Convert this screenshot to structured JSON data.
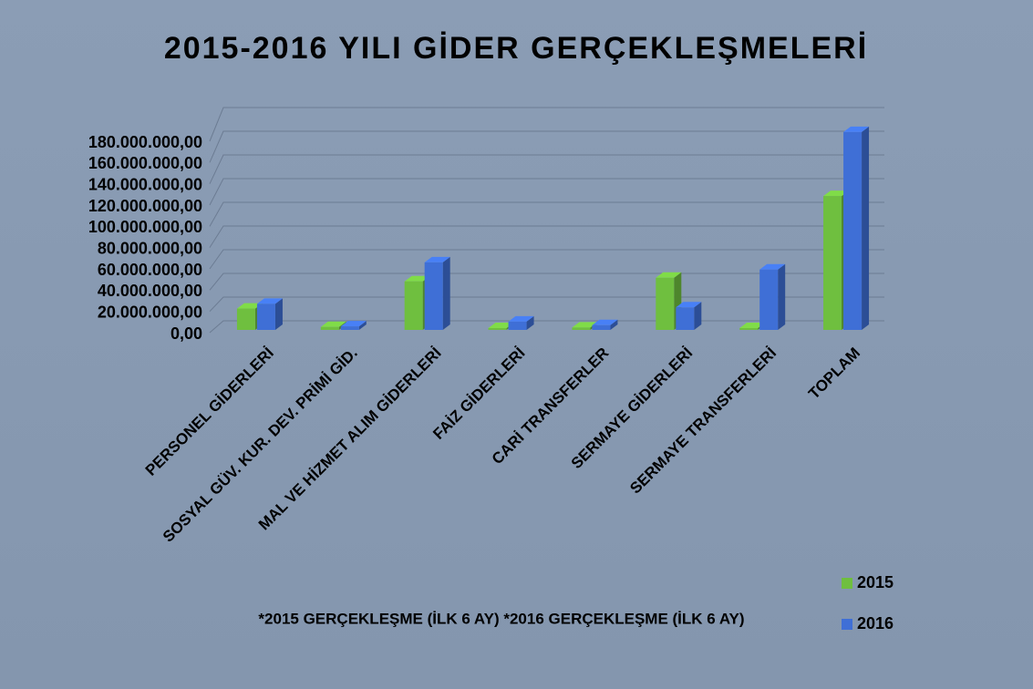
{
  "chart_data": {
    "type": "bar3d",
    "title": "2015-2016 YILI GİDER GERÇEKLEŞMELERİ",
    "note": "*2015 GERÇEKLEŞME (İLK 6 AY)  *2016 GERÇEKLEŞME (İLK 6 AY)",
    "categories": [
      "PERSONEL GİDERLERİ",
      "SOSYAL GÜV. KUR. DEV. PRİMİ GİD.",
      "MAL VE HİZMET ALIM GİDERLERİ",
      "FAİZ GİDERLERİ",
      "CARİ TRANSFERLER",
      "SERMAYE GİDERLERİ",
      "SERMAYE TRANSFERLERİ",
      "TOPLAM"
    ],
    "series": [
      {
        "name": "2015",
        "color": "#6fbf3f",
        "values": [
          18000000,
          2500000,
          41000000,
          1500000,
          2000000,
          44000000,
          1000000,
          113000000
        ]
      },
      {
        "name": "2016",
        "color": "#3f6fd6",
        "values": [
          22000000,
          3000000,
          57000000,
          7000000,
          4000000,
          19000000,
          51000000,
          167000000
        ]
      }
    ],
    "ylim": [
      0,
      180000000
    ],
    "yticks": [
      {
        "value": 0,
        "label": "0,00"
      },
      {
        "value": 20000000,
        "label": "20.000.000,00"
      },
      {
        "value": 40000000,
        "label": "40.000.000,00"
      },
      {
        "value": 60000000,
        "label": "60.000.000,00"
      },
      {
        "value": 80000000,
        "label": "80.000.000,00"
      },
      {
        "value": 100000000,
        "label": "100.000.000,00"
      },
      {
        "value": 120000000,
        "label": "120.000.000,00"
      },
      {
        "value": 140000000,
        "label": "140.000.000,00"
      },
      {
        "value": 160000000,
        "label": "160.000.000,00"
      },
      {
        "value": 180000000,
        "label": "180.000.000,00"
      }
    ],
    "grid": true,
    "legend": "bottom-right"
  }
}
